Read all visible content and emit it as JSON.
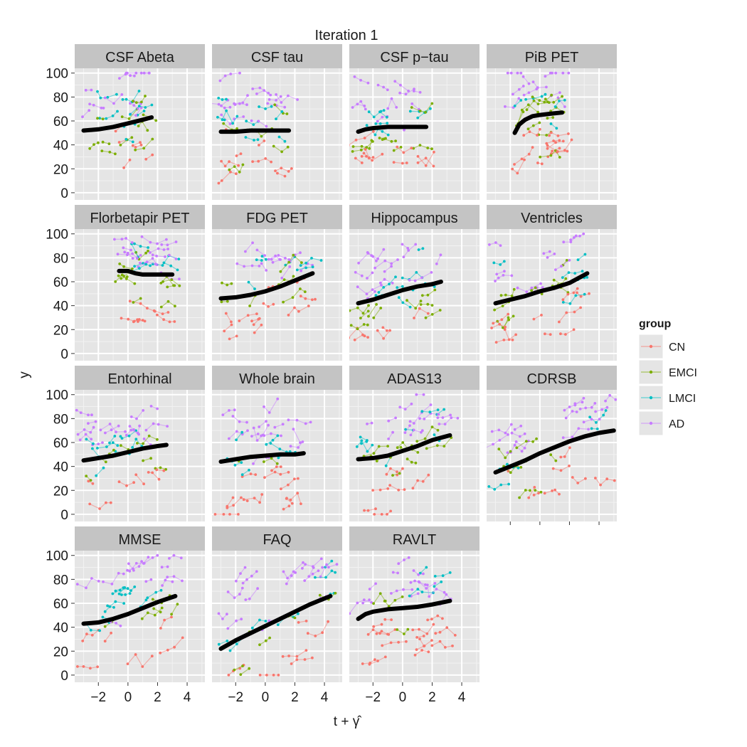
{
  "chart_data": {
    "type": "scatter",
    "title": "Iteration 1",
    "xlabel": "t + γ̂",
    "ylabel": "y",
    "xlim": [
      -3.6,
      5.2
    ],
    "ylim": [
      -6,
      104
    ],
    "x_ticks": [
      -2,
      0,
      2,
      4
    ],
    "y_ticks": [
      0,
      20,
      40,
      60,
      80,
      100
    ],
    "grid": true,
    "facet_layout": {
      "rows": 4,
      "cols": 4
    },
    "legend": {
      "title": "group",
      "placement": "right",
      "items": [
        {
          "label": "CN",
          "color": "#F8766D"
        },
        {
          "label": "EMCI",
          "color": "#7CAE00"
        },
        {
          "label": "LMCI",
          "color": "#00BFC4"
        },
        {
          "label": "AD",
          "color": "#C77CFF"
        }
      ]
    },
    "panels": [
      {
        "label": "CSF Abeta",
        "x_range": [
          -3.0,
          1.6
        ],
        "fit": [
          [
            -3.0,
            52
          ],
          [
            -2.0,
            53
          ],
          [
            -1.0,
            55
          ],
          [
            0.0,
            58
          ],
          [
            1.0,
            61
          ],
          [
            1.6,
            63
          ]
        ]
      },
      {
        "label": "CSF tau",
        "x_range": [
          -3.0,
          1.6
        ],
        "fit": [
          [
            -3.0,
            51
          ],
          [
            -2.0,
            51
          ],
          [
            -1.0,
            52
          ],
          [
            0.0,
            52
          ],
          [
            1.0,
            52
          ],
          [
            1.6,
            52
          ]
        ]
      },
      {
        "label": "CSF p−tau",
        "x_range": [
          -3.0,
          1.6
        ],
        "fit": [
          [
            -3.0,
            51
          ],
          [
            -2.5,
            53
          ],
          [
            -2.0,
            54
          ],
          [
            -1.0,
            55
          ],
          [
            0.0,
            55
          ],
          [
            1.0,
            55
          ],
          [
            1.6,
            55
          ]
        ]
      },
      {
        "label": "PiB PET",
        "x_range": [
          -1.8,
          1.5
        ],
        "fit": [
          [
            -1.7,
            50
          ],
          [
            -1.4,
            57
          ],
          [
            -1.0,
            61
          ],
          [
            -0.5,
            64
          ],
          [
            0.0,
            65
          ],
          [
            0.7,
            66
          ],
          [
            1.5,
            67
          ]
        ]
      },
      {
        "label": "Florbetapir PET",
        "x_range": [
          -0.6,
          3.0
        ],
        "fit": [
          [
            -0.6,
            69
          ],
          [
            0.0,
            69
          ],
          [
            0.5,
            67
          ],
          [
            1.0,
            66
          ],
          [
            2.0,
            66
          ],
          [
            3.0,
            66
          ]
        ]
      },
      {
        "label": "FDG PET",
        "x_range": [
          -3.0,
          3.2
        ],
        "fit": [
          [
            -3.0,
            46
          ],
          [
            -2.0,
            47
          ],
          [
            -1.0,
            49
          ],
          [
            0.0,
            52
          ],
          [
            1.0,
            56
          ],
          [
            2.0,
            61
          ],
          [
            3.2,
            67
          ]
        ]
      },
      {
        "label": "Hippocampus",
        "x_range": [
          -3.0,
          2.6
        ],
        "fit": [
          [
            -3.0,
            42
          ],
          [
            -2.0,
            45
          ],
          [
            -1.0,
            49
          ],
          [
            0.0,
            53
          ],
          [
            1.0,
            56
          ],
          [
            2.0,
            58
          ],
          [
            2.6,
            60
          ]
        ]
      },
      {
        "label": "Ventricles",
        "x_range": [
          -3.0,
          3.2
        ],
        "fit": [
          [
            -3.0,
            42
          ],
          [
            -2.0,
            45
          ],
          [
            -1.0,
            48
          ],
          [
            0.0,
            52
          ],
          [
            1.0,
            55
          ],
          [
            2.0,
            59
          ],
          [
            3.2,
            67
          ]
        ]
      },
      {
        "label": "Entorhinal",
        "x_range": [
          -3.0,
          2.6
        ],
        "fit": [
          [
            -3.0,
            45
          ],
          [
            -2.0,
            47
          ],
          [
            -1.0,
            49
          ],
          [
            0.0,
            52
          ],
          [
            1.0,
            55
          ],
          [
            2.0,
            57
          ],
          [
            2.6,
            58
          ]
        ]
      },
      {
        "label": "Whole brain",
        "x_range": [
          -3.0,
          2.6
        ],
        "fit": [
          [
            -3.0,
            44
          ],
          [
            -2.0,
            46
          ],
          [
            -1.0,
            48
          ],
          [
            0.0,
            49
          ],
          [
            1.0,
            50
          ],
          [
            2.0,
            50
          ],
          [
            2.6,
            51
          ]
        ]
      },
      {
        "label": "ADAS13",
        "x_range": [
          -3.0,
          3.2
        ],
        "fit": [
          [
            -3.0,
            46
          ],
          [
            -2.0,
            47
          ],
          [
            -1.0,
            49
          ],
          [
            0.0,
            53
          ],
          [
            1.0,
            57
          ],
          [
            2.0,
            62
          ],
          [
            3.2,
            66
          ]
        ]
      },
      {
        "label": "CDRSB",
        "x_range": [
          -3.0,
          5.0
        ],
        "fit": [
          [
            -3.0,
            35
          ],
          [
            -2.0,
            40
          ],
          [
            -1.0,
            45
          ],
          [
            0.0,
            51
          ],
          [
            1.0,
            56
          ],
          [
            2.0,
            61
          ],
          [
            3.0,
            65
          ],
          [
            4.0,
            68
          ],
          [
            5.0,
            70
          ]
        ]
      },
      {
        "label": "MMSE",
        "x_range": [
          -3.0,
          3.2
        ],
        "fit": [
          [
            -3.0,
            43
          ],
          [
            -2.0,
            44
          ],
          [
            -1.0,
            47
          ],
          [
            0.0,
            51
          ],
          [
            1.0,
            56
          ],
          [
            2.0,
            61
          ],
          [
            3.2,
            66
          ]
        ]
      },
      {
        "label": "FAQ",
        "x_range": [
          -3.0,
          4.4
        ],
        "fit": [
          [
            -3.0,
            22
          ],
          [
            -2.0,
            29
          ],
          [
            -1.0,
            35
          ],
          [
            0.0,
            41
          ],
          [
            1.0,
            47
          ],
          [
            2.0,
            53
          ],
          [
            3.0,
            59
          ],
          [
            4.4,
            66
          ]
        ]
      },
      {
        "label": "RAVLT",
        "x_range": [
          -3.0,
          3.2
        ],
        "fit": [
          [
            -3.0,
            47
          ],
          [
            -2.5,
            51
          ],
          [
            -2.0,
            53
          ],
          [
            -1.0,
            55
          ],
          [
            0.0,
            56
          ],
          [
            1.0,
            57
          ],
          [
            2.0,
            59
          ],
          [
            3.2,
            62
          ]
        ]
      }
    ]
  }
}
